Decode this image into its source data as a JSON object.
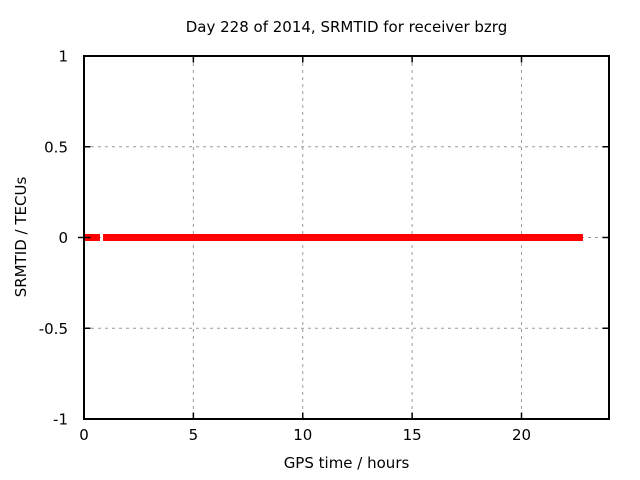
{
  "page": {
    "background_color": "#ffffff"
  },
  "chart_data": {
    "type": "line",
    "title": "Day 228 of 2014, SRMTID for receiver bzrg",
    "xlabel": "GPS time / hours",
    "ylabel": "SRMTID / TECUs",
    "xlim": [
      0,
      24
    ],
    "ylim": [
      -1,
      1
    ],
    "xticks": [
      0,
      5,
      10,
      15,
      20
    ],
    "xtick_labels": [
      "0",
      "5",
      "10",
      "15",
      "20"
    ],
    "yticks": [
      1,
      0.5,
      0,
      -0.5,
      -1
    ],
    "ytick_labels": [
      "1",
      "0.5",
      "0",
      "-0.5",
      "-1"
    ],
    "grid": true,
    "legend_position": "none",
    "colors": {
      "border": "#000000",
      "grid": "#9a9a9a",
      "text": "#000000",
      "series": "#ff0000"
    },
    "series": [
      {
        "name": "SRMTID",
        "color": "#ff0000",
        "linewidth": 7,
        "y_value": 0,
        "segments_x_hours": [
          [
            0.04,
            0.73
          ],
          [
            0.87,
            22.81
          ]
        ]
      }
    ]
  }
}
